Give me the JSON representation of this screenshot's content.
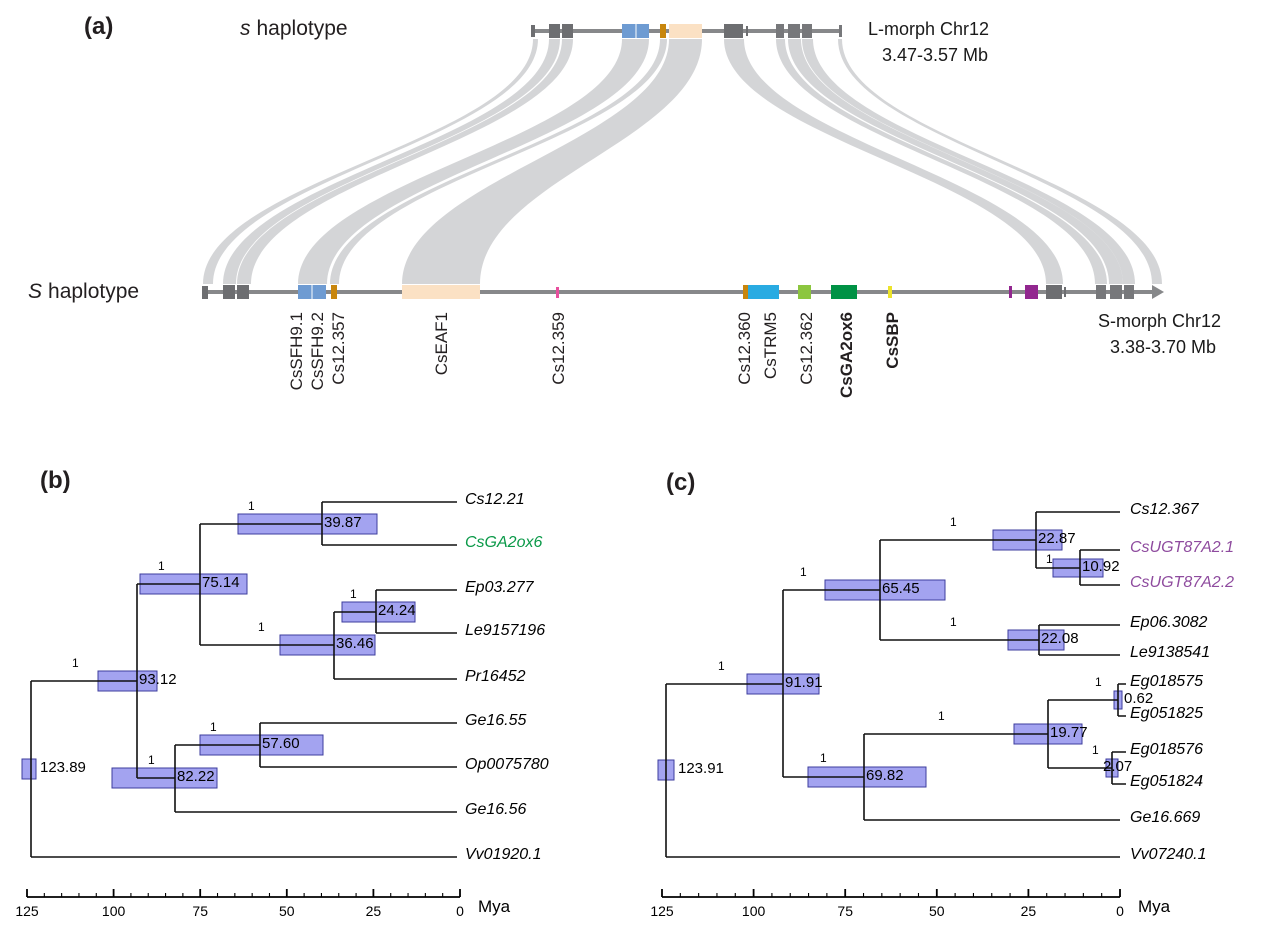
{
  "figure": {
    "panel_a_label": "(a)",
    "panel_b_label": "(b)",
    "panel_c_label": "(c)"
  },
  "panel_a": {
    "top_track": {
      "name_symbol": "s",
      "name_word": "haplotype",
      "side_label_line1": "L-morph Chr12",
      "side_label_line2": "3.47-3.57 Mb"
    },
    "bottom_track": {
      "name_symbol": "S",
      "name_word": "haplotype",
      "side_label_line1": "S-morph Chr12",
      "side_label_line2": "3.38-3.70 Mb"
    },
    "genes": [
      {
        "name": "CsSFH9.1",
        "bold": false
      },
      {
        "name": "CsSFH9.2",
        "bold": false
      },
      {
        "name": "Cs12.357",
        "bold": false
      },
      {
        "name": "CsEAF1",
        "bold": false
      },
      {
        "name": "Cs12.359",
        "bold": false
      },
      {
        "name": "Cs12.360",
        "bold": false
      },
      {
        "name": "CsTRM5",
        "bold": false
      },
      {
        "name": "Cs12.362",
        "bold": false
      },
      {
        "name": "CsGA2ox6",
        "bold": true
      },
      {
        "name": "CsSBP",
        "bold": true
      }
    ],
    "colors": {
      "bar_line": "#87888a",
      "gray_block": "#6d6e71",
      "light_gray_block": "#77787b",
      "blue": "#6e9bd2",
      "cyan": "#29abe2",
      "orange": "#c8860d",
      "peach": "#fbe1c4",
      "magenta": "#e84f9e",
      "lime": "#8cc63f",
      "green": "#009245",
      "yellow": "#ece32a",
      "purple": "#92278f",
      "ribbon": "#c4c5c7"
    }
  },
  "chart_data": [
    {
      "type": "phylogenetic_timetree",
      "panel": "b",
      "taxa": [
        {
          "name": "Cs12.21",
          "color": "#000000"
        },
        {
          "name": "CsGA2ox6",
          "color": "#0a9948"
        },
        {
          "name": "Ep03.277",
          "color": "#000000"
        },
        {
          "name": "Le9157196",
          "color": "#000000"
        },
        {
          "name": "Pr16452",
          "color": "#000000"
        },
        {
          "name": "Ge16.55",
          "color": "#000000"
        },
        {
          "name": "Op0075780",
          "color": "#000000"
        },
        {
          "name": "Ge16.56",
          "color": "#000000"
        },
        {
          "name": "Vv01920.1",
          "color": "#000000"
        }
      ],
      "nodes": [
        {
          "label": "39.87",
          "age": 39.87,
          "posterior": "1"
        },
        {
          "label": "75.14",
          "age": 75.14,
          "posterior": "1"
        },
        {
          "label": "24.24",
          "age": 24.24,
          "posterior": "1"
        },
        {
          "label": "36.46",
          "age": 36.46,
          "posterior": "1"
        },
        {
          "label": "93.12",
          "age": 93.12,
          "posterior": "1"
        },
        {
          "label": "57.60",
          "age": 57.6,
          "posterior": "1"
        },
        {
          "label": "82.22",
          "age": 82.22,
          "posterior": "1"
        },
        {
          "label": "123.89",
          "age": 123.89,
          "posterior": null
        }
      ],
      "newick": "(((Cs12.21,CsGA2ox6)39.87,((Ep03.277,Le9157196)24.24,Pr16452)36.46)75.14,((Ge16.55,Op0075780)57.60,Ge16.56)82.22)93.12,Vv01920.1)123.89",
      "axis": {
        "ticks": [
          "125",
          "100",
          "75",
          "50",
          "25",
          "0"
        ],
        "minor_step": 5,
        "label": "Mya",
        "range": [
          125,
          0
        ],
        "hpd_bar_color": "#8c8cec"
      }
    },
    {
      "type": "phylogenetic_timetree",
      "panel": "c",
      "taxa": [
        {
          "name": "Cs12.367",
          "color": "#000000"
        },
        {
          "name": "CsUGT87A2.1",
          "color": "#8e4b9e"
        },
        {
          "name": "CsUGT87A2.2",
          "color": "#8e4b9e"
        },
        {
          "name": "Ep06.3082",
          "color": "#000000"
        },
        {
          "name": "Le9138541",
          "color": "#000000"
        },
        {
          "name": "Eg018575",
          "color": "#000000"
        },
        {
          "name": "Eg051825",
          "color": "#000000"
        },
        {
          "name": "Eg018576",
          "color": "#000000"
        },
        {
          "name": "Eg051824",
          "color": "#000000"
        },
        {
          "name": "Ge16.669",
          "color": "#000000"
        },
        {
          "name": "Vv07240.1",
          "color": "#000000"
        }
      ],
      "nodes": [
        {
          "label": "22.87",
          "age": 22.87,
          "posterior": "1"
        },
        {
          "label": "10.92",
          "age": 10.92,
          "posterior": "1"
        },
        {
          "label": "65.45",
          "age": 65.45,
          "posterior": "1"
        },
        {
          "label": "22.08",
          "age": 22.08,
          "posterior": "1"
        },
        {
          "label": "91.91",
          "age": 91.91,
          "posterior": "1"
        },
        {
          "label": "19.77",
          "age": 19.77,
          "posterior": "1"
        },
        {
          "label": "0.62",
          "age": 0.62,
          "posterior": "1"
        },
        {
          "label": "2.07",
          "age": 2.07,
          "posterior": "1"
        },
        {
          "label": "69.82",
          "age": 69.82,
          "posterior": "1"
        },
        {
          "label": "123.91",
          "age": 123.91,
          "posterior": null
        }
      ],
      "newick": "((((Cs12.367,(CsUGT87A2.1,CsUGT87A2.2)10.92)22.87,(Ep06.3082,Le9138541)22.08)65.45,(((Eg018575,Eg051825)0.62,(Eg018576,Eg051824)2.07)19.77,Ge16.669)69.82)91.91,Vv07240.1)123.91",
      "axis": {
        "ticks": [
          "125",
          "100",
          "75",
          "50",
          "25",
          "0"
        ],
        "minor_step": 5,
        "label": "Mya",
        "range": [
          125,
          0
        ],
        "hpd_bar_color": "#8c8cec"
      }
    }
  ]
}
